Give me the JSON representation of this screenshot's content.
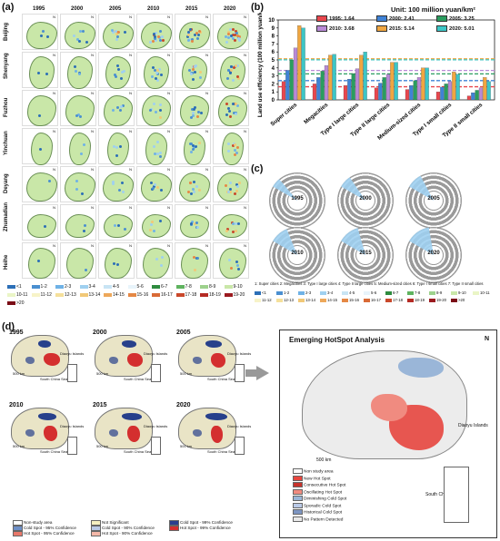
{
  "panels": {
    "a": "(a)",
    "b": "(b)",
    "c": "(c)",
    "d": "(d)"
  },
  "panel_a": {
    "years": [
      "1995",
      "2000",
      "2005",
      "2010",
      "2015",
      "2020"
    ],
    "cities": [
      "Beijing",
      "Shenyang",
      "Fuzhou",
      "Yinchuan",
      "Deyang",
      "Zhumadian",
      "Heihe"
    ],
    "legend": [
      "<1",
      "1-2",
      "2-3",
      "3-4",
      "4-5",
      "5-6",
      "6-7",
      "7-8",
      "8-9",
      "9-10",
      "10-11",
      "11-12",
      "12-13",
      "13-14",
      "14-15",
      "15-16",
      "16-17",
      "17-18",
      "18-19",
      "19-20",
      ">20"
    ],
    "legend_colors": [
      "#2c6fb7",
      "#4a8fd0",
      "#6fb2e6",
      "#9fd0f0",
      "#c8e4f4",
      "#e8f4fb",
      "#2e8b3e",
      "#5fb35f",
      "#9dd18c",
      "#c9e7a8",
      "#eaf5c6",
      "#f7f3c8",
      "#f5e09b",
      "#f1c877",
      "#eda85a",
      "#e58845",
      "#d96a36",
      "#c9482b",
      "#b52b24",
      "#9b1a1f",
      "#7a0c15"
    ],
    "north": "N"
  },
  "panel_b": {
    "unit": "Unit: 100 million yuan/km²",
    "ylabel": "Land use efficiency (100 million yuan/km²)",
    "legend": [
      "1995: 1.64",
      "2000: 2.41",
      "2005: 3.25",
      "2010: 3.68",
      "2015: 5.14",
      "2020: 5.01"
    ],
    "y_ticks": [
      "0",
      "1",
      "2",
      "3",
      "4",
      "5",
      "6",
      "7",
      "8",
      "9",
      "10"
    ]
  },
  "chart_data": {
    "type": "bar",
    "categories": [
      "Super cities",
      "Megacities",
      "Type I large cities",
      "Type II large cities",
      "Medium-sized cities",
      "Type I small cities",
      "Type II small cities"
    ],
    "series": [
      {
        "name": "1995",
        "color": "#e8474e",
        "values": [
          2.3,
          2.0,
          1.8,
          1.5,
          1.3,
          1.0,
          0.5
        ]
      },
      {
        "name": "2000",
        "color": "#3f82d6",
        "values": [
          3.7,
          2.8,
          2.6,
          2.1,
          1.8,
          1.6,
          0.9
        ]
      },
      {
        "name": "2005",
        "color": "#2a9d5f",
        "values": [
          5.0,
          3.6,
          3.3,
          2.8,
          2.4,
          2.0,
          1.2
        ]
      },
      {
        "name": "2010",
        "color": "#b98ad6",
        "values": [
          6.5,
          4.3,
          3.9,
          3.2,
          2.8,
          2.3,
          1.5
        ]
      },
      {
        "name": "2015",
        "color": "#f0a640",
        "values": [
          9.3,
          5.6,
          5.6,
          4.7,
          4.0,
          3.5,
          2.8
        ]
      },
      {
        "name": "2020",
        "color": "#3cc6c6",
        "values": [
          9.0,
          5.7,
          6.0,
          4.7,
          4.0,
          3.2,
          2.3
        ]
      }
    ],
    "ylim": [
      0,
      10
    ],
    "means": [
      1.64,
      2.41,
      3.25,
      3.68,
      5.14,
      5.01
    ]
  },
  "panel_c": {
    "years": [
      "1995",
      "2000",
      "2005",
      "2010",
      "2015",
      "2020"
    ],
    "legend_title": "1: Super cities 2: Megacities 3: Type I large cities 4: Type II large cities 5: Medium-sized cities 6: Type I small cities 7: Type II small cities",
    "legend": [
      "<1",
      "1-2",
      "2-3",
      "3-4",
      "4-5",
      "5-6",
      "6-7",
      "7-8",
      "8-9",
      "9-10",
      "10-11",
      "11-12",
      "12-13",
      "13-14",
      "14-15",
      "15-16",
      "16-17",
      "17-18",
      "18-19",
      "19-20",
      ">20"
    ]
  },
  "panel_d": {
    "years": [
      "1995",
      "2000",
      "2005",
      "2010",
      "2015",
      "2020"
    ],
    "islands": "Diaoyu Islands",
    "sea": "South China Sea",
    "scale": "500 km",
    "legend": [
      "Non-study area",
      "Not Significant",
      "Cold Spot - 99% Confidence",
      "Cold Spot - 95% Confidence",
      "Cold Spot - 90% Confidence",
      "Hot Spot - 99% Confidence",
      "Hot Spot - 95% Confidence",
      "Hot Spot - 90% Confidence"
    ],
    "legend_colors": [
      "#ffffff",
      "#f5efc0",
      "#2a3f8f",
      "#6d8fc7",
      "#b9c9e6",
      "#d42f2f",
      "#e9786a",
      "#f3b7a8"
    ],
    "ehsa_title": "Emerging HotSpot Analysis",
    "ehsa_legend": [
      "Non study area",
      "New Hot Spot",
      "Consecutive Hot Spot",
      "Oscillating Hot Spot",
      "Diminishing Cold Spot",
      "Sporadic Cold Spot",
      "Historical Cold Spot",
      "No Pattern Detected"
    ],
    "ehsa_colors": [
      "#ffffff",
      "#e7463f",
      "#c7322b",
      "#f08b80",
      "#9ab6d8",
      "#b9c9e6",
      "#7d95c2",
      "#e9e9e9"
    ]
  }
}
